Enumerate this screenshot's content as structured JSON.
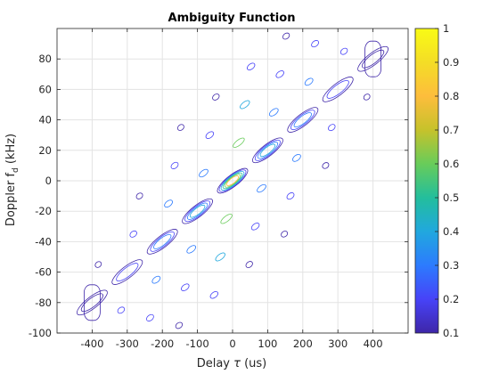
{
  "chart_data": {
    "type": "contour",
    "title": "Ambiguity Function",
    "xlabel_prefix": "Delay ",
    "xlabel_symbol": "τ",
    "xlabel_suffix": " (us)",
    "ylabel_main": "Doppler f",
    "ylabel_sub": "d",
    "ylabel_suffix": " (kHz)",
    "xlim": [
      -500,
      500
    ],
    "ylim": [
      -100,
      100
    ],
    "xticks": [
      -400,
      -300,
      -200,
      -100,
      0,
      100,
      200,
      300,
      400
    ],
    "yticks": [
      -100,
      -80,
      -60,
      -40,
      -20,
      0,
      20,
      40,
      60,
      80
    ],
    "grid": true,
    "colorbar": {
      "min": 0.1,
      "max": 1,
      "ticks": [
        "0.1",
        "0.2",
        "0.3",
        "0.4",
        "0.5",
        "0.6",
        "0.7",
        "0.8",
        "0.9",
        "1"
      ],
      "colormap": [
        "#3e26a8",
        "#4743f8",
        "#2c7bfe",
        "#21a8de",
        "#23be9c",
        "#68cc5a",
        "#c6c22b",
        "#fdbd3c",
        "#f4dd26",
        "#f9fb15"
      ]
    },
    "peaks": [
      {
        "delay": 0,
        "doppler": 0,
        "level": 0.75
      },
      {
        "delay": -100,
        "doppler": -20,
        "level": 0.45
      },
      {
        "delay": 100,
        "doppler": 20,
        "level": 0.45
      },
      {
        "delay": -200,
        "doppler": -40,
        "level": 0.35
      },
      {
        "delay": 200,
        "doppler": 40,
        "level": 0.35
      },
      {
        "delay": -300,
        "doppler": -60,
        "level": 0.2
      },
      {
        "delay": 300,
        "doppler": 60,
        "level": 0.2
      },
      {
        "delay": -400,
        "doppler": -80,
        "level": 0.12
      },
      {
        "delay": 400,
        "doppler": 80,
        "level": 0.12
      }
    ]
  }
}
